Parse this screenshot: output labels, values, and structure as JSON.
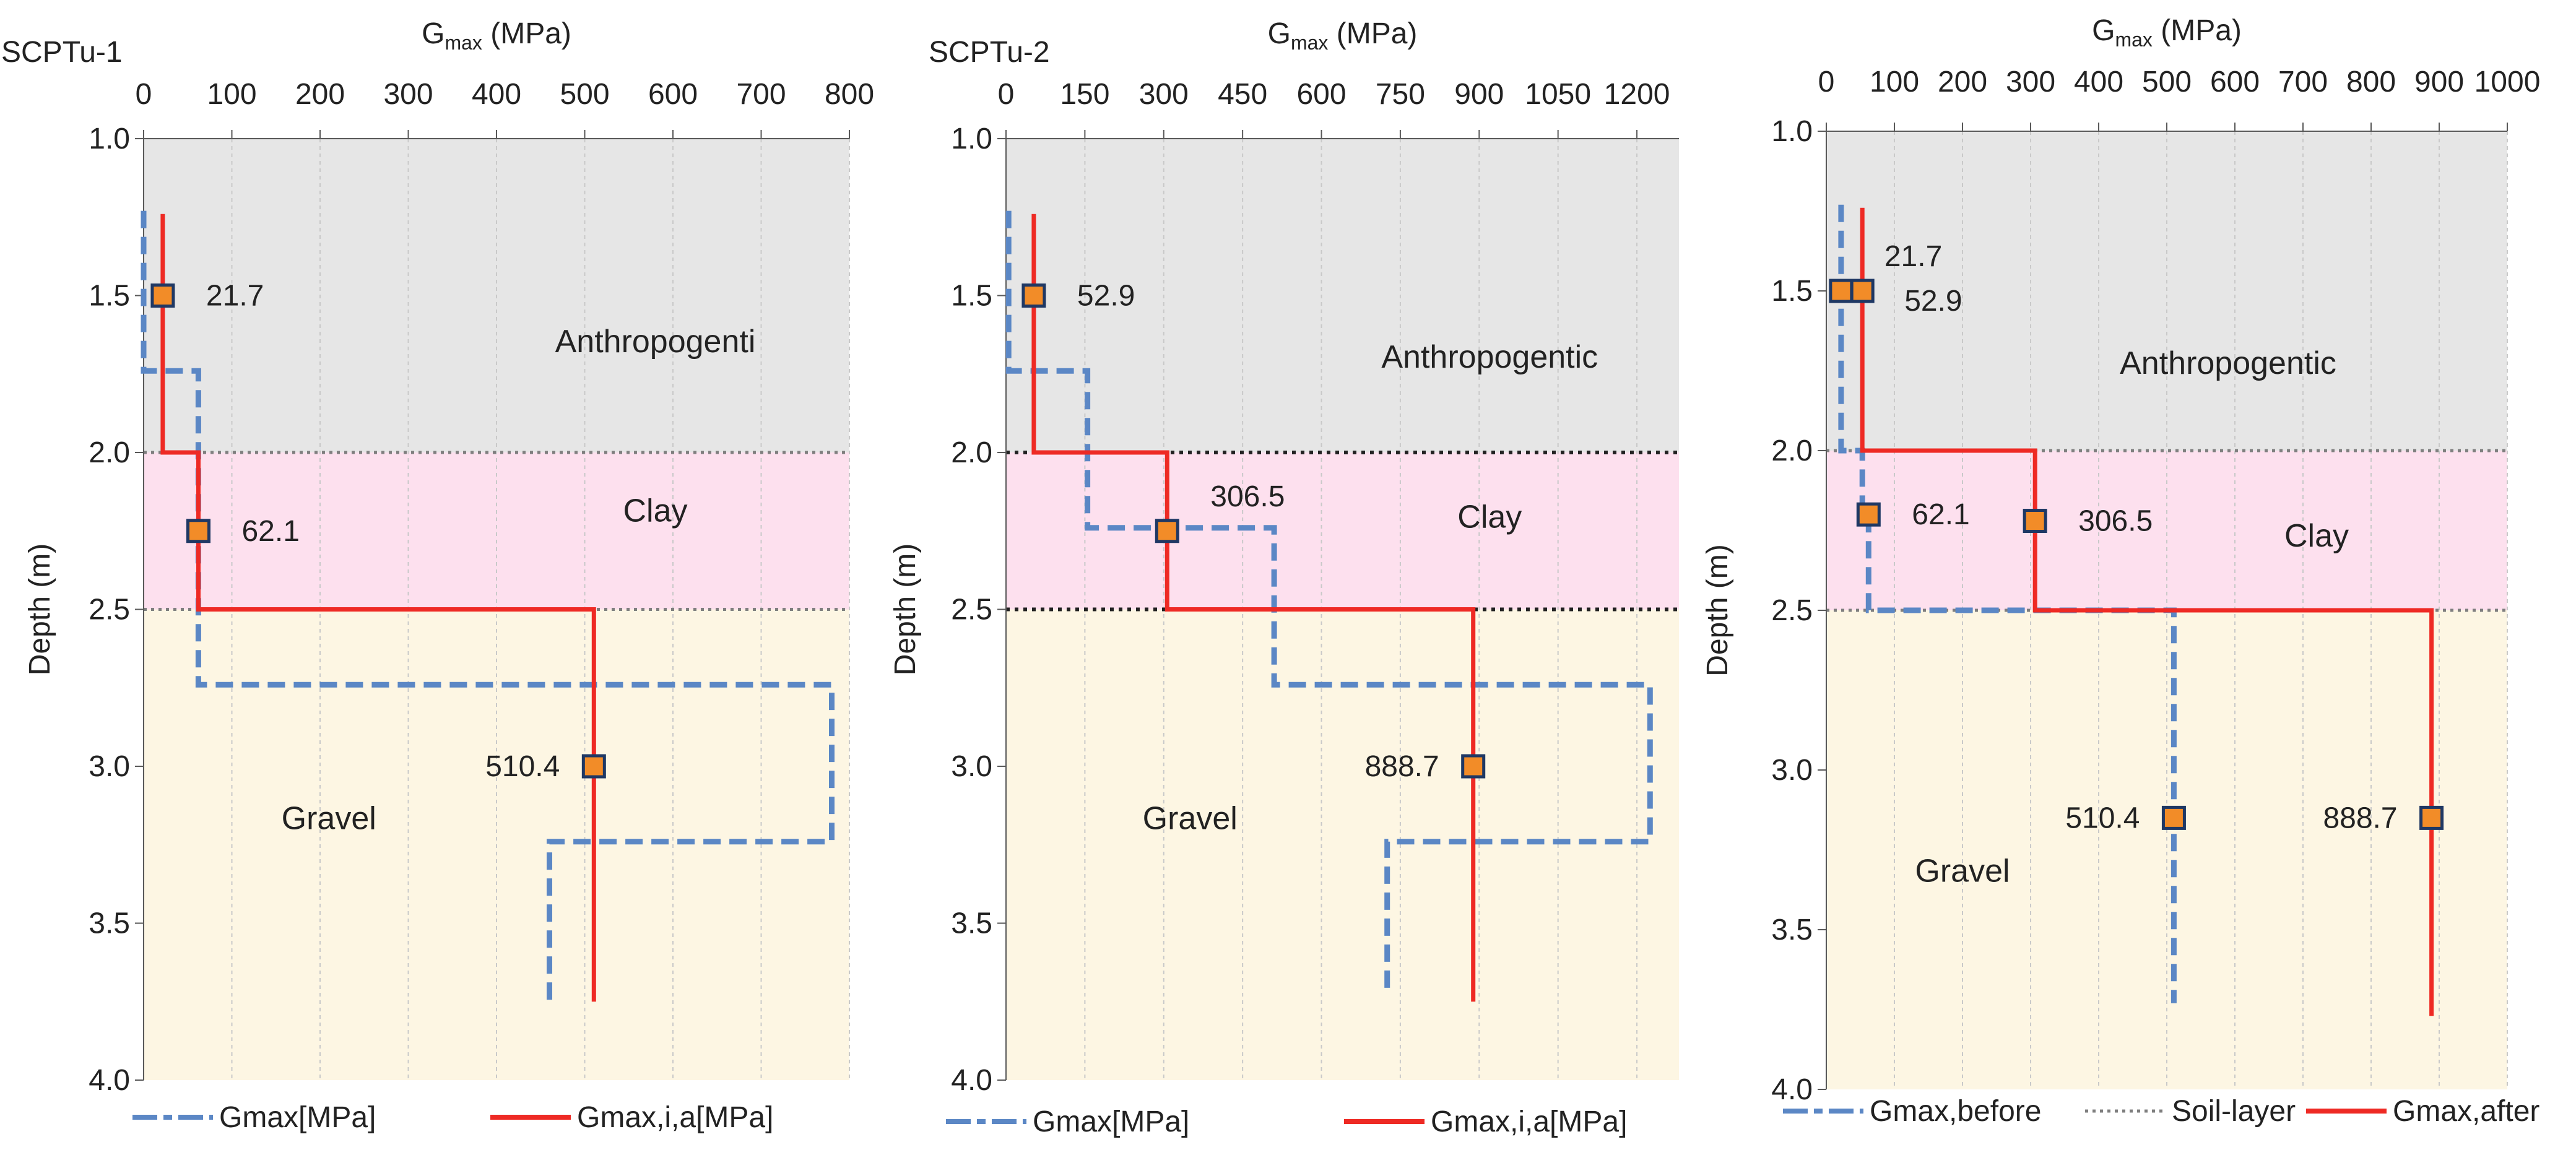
{
  "chart_data": [
    {
      "type": "line",
      "title": "SCPTu-1",
      "xlabel_main": "G",
      "xlabel_sub": "max",
      "xlabel_unit": " (MPa)",
      "ylabel": "Depth (m)",
      "xlim": [
        0,
        800
      ],
      "ylim": [
        1.0,
        4.0
      ],
      "xticks": [
        0,
        100,
        200,
        300,
        400,
        500,
        600,
        700,
        800
      ],
      "xtick_labels": [
        "0",
        "100",
        "200",
        "300",
        "400",
        "500",
        "600",
        "700",
        "800"
      ],
      "yticks": [
        1.0,
        1.5,
        2.0,
        2.5,
        3.0,
        3.5,
        4.0
      ],
      "ytick_labels": [
        "1.0",
        "1.5",
        "2.0",
        "2.5",
        "3.0",
        "3.5",
        "4.0"
      ],
      "layers": [
        {
          "name": "Anthropogenti",
          "top": 1.0,
          "bottom": 2.0,
          "color": "#e6e6e6",
          "label_x": 580,
          "label_y": 1.68
        },
        {
          "name": "Clay",
          "top": 2.0,
          "bottom": 2.5,
          "color": "#fde0ee",
          "label_x": 580,
          "label_y": 2.22
        },
        {
          "name": "Gravel",
          "top": 2.5,
          "bottom": 4.0,
          "color": "#fdf6e3",
          "label_x": 210,
          "label_y": 3.2
        }
      ],
      "layer_boundaries": [
        2.0,
        2.5
      ],
      "series": [
        {
          "name": "Gmax[MPa]",
          "style": "dashed",
          "color": "#5b87c5",
          "x": [
            0,
            0,
            62,
            62,
            62,
            62,
            780,
            780,
            460,
            460
          ],
          "y": [
            1.23,
            1.74,
            1.74,
            2.0,
            2.5,
            2.74,
            2.74,
            3.24,
            3.24,
            3.75
          ]
        },
        {
          "name": "Gmax,i,a[MPa]",
          "style": "solid",
          "color": "#ee2a24",
          "x": [
            21.7,
            21.7,
            62.1,
            62.1,
            510.4,
            510.4
          ],
          "y": [
            1.24,
            2.0,
            2.0,
            2.5,
            2.5,
            3.75
          ]
        }
      ],
      "points": [
        {
          "x": 21.7,
          "y": 1.5,
          "label": "21.7",
          "label_side": "right"
        },
        {
          "x": 62.1,
          "y": 2.25,
          "label": "62.1",
          "label_side": "right"
        },
        {
          "x": 510.4,
          "y": 3.0,
          "label": "510.4",
          "label_side": "left"
        }
      ],
      "legend": [
        {
          "label": "Gmax[MPa]",
          "style": "dashed",
          "color": "#5b87c5"
        },
        {
          "label": "Gmax,i,a[MPa]",
          "style": "solid",
          "color": "#ee2a24"
        }
      ]
    },
    {
      "type": "line",
      "title": "SCPTu-2",
      "xlabel_main": "G",
      "xlabel_sub": "max",
      "xlabel_unit": " (MPa)",
      "ylabel": "Depth (m)",
      "xlim": [
        0,
        1280
      ],
      "ylim": [
        1.0,
        4.0
      ],
      "xticks": [
        0,
        150,
        300,
        450,
        600,
        750,
        900,
        1050,
        1200
      ],
      "xtick_labels": [
        "0",
        "150",
        "300",
        "450",
        "600",
        "750",
        "900",
        "1050",
        "1200"
      ],
      "yticks": [
        1.0,
        1.5,
        2.0,
        2.5,
        3.0,
        3.5,
        4.0
      ],
      "ytick_labels": [
        "1.0",
        "1.5",
        "2.0",
        "2.5",
        "3.0",
        "3.5",
        "4.0"
      ],
      "layers": [
        {
          "name": "Anthropogentic",
          "top": 1.0,
          "bottom": 2.0,
          "color": "#e6e6e6",
          "label_x": 920,
          "label_y": 1.73
        },
        {
          "name": "Clay",
          "top": 2.0,
          "bottom": 2.5,
          "color": "#fde0ee",
          "label_x": 920,
          "label_y": 2.24
        },
        {
          "name": "Gravel",
          "top": 2.5,
          "bottom": 4.0,
          "color": "#fdf6e3",
          "label_x": 350,
          "label_y": 3.2
        }
      ],
      "layer_boundaries": [
        2.0,
        2.5
      ],
      "series": [
        {
          "name": "Gmax[MPa]",
          "style": "dashed",
          "color": "#5b87c5",
          "x": [
            5,
            5,
            155,
            155,
            510,
            510,
            1225,
            1225,
            725,
            725
          ],
          "y": [
            1.23,
            1.74,
            1.74,
            2.24,
            2.24,
            2.74,
            2.74,
            3.24,
            3.24,
            3.73
          ]
        },
        {
          "name": "Gmax,i,a[MPa]",
          "style": "solid",
          "color": "#ee2a24",
          "x": [
            52.9,
            52.9,
            306.5,
            306.5,
            888.7,
            888.7
          ],
          "y": [
            1.24,
            2.0,
            2.0,
            2.5,
            2.5,
            3.75
          ]
        }
      ],
      "points": [
        {
          "x": 52.9,
          "y": 1.5,
          "label": "52.9",
          "label_side": "right"
        },
        {
          "x": 306.5,
          "y": 2.25,
          "label": "306.5",
          "label_side": "above-right"
        },
        {
          "x": 888.7,
          "y": 3.0,
          "label": "888.7",
          "label_side": "left"
        }
      ],
      "legend": [
        {
          "label": "Gmax[MPa]",
          "style": "dashed",
          "color": "#5b87c5"
        },
        {
          "label": "Gmax,i,a[MPa]",
          "style": "solid",
          "color": "#ee2a24"
        }
      ]
    },
    {
      "type": "line",
      "title": "",
      "xlabel_main": "G",
      "xlabel_sub": "max",
      "xlabel_unit": " (MPa)",
      "ylabel": "Depth (m)",
      "xlim": [
        0,
        1000
      ],
      "ylim": [
        1.0,
        4.0
      ],
      "xticks": [
        0,
        100,
        200,
        300,
        400,
        500,
        600,
        700,
        800,
        900,
        1000
      ],
      "xtick_labels": [
        "0",
        "100",
        "200",
        "300",
        "400",
        "500",
        "600",
        "700",
        "800",
        "900",
        "1000"
      ],
      "yticks": [
        1.0,
        1.5,
        2.0,
        2.5,
        3.0,
        3.5,
        4.0
      ],
      "ytick_labels": [
        "1.0",
        "1.5",
        "2.0",
        "2.5",
        "3.0",
        "3.5",
        "4.0"
      ],
      "layers": [
        {
          "name": "Anthropogentic",
          "top": 1.0,
          "bottom": 2.0,
          "color": "#e6e6e6",
          "label_x": 590,
          "label_y": 1.76
        },
        {
          "name": "Clay",
          "top": 2.0,
          "bottom": 2.5,
          "color": "#fde0ee",
          "label_x": 720,
          "label_y": 2.3
        },
        {
          "name": "Gravel",
          "top": 2.5,
          "bottom": 4.0,
          "color": "#fdf6e3",
          "label_x": 200,
          "label_y": 3.35
        }
      ],
      "layer_boundaries": [
        2.0,
        2.5
      ],
      "series": [
        {
          "name": "Gmax,before",
          "style": "dashed",
          "color": "#5b87c5",
          "x": [
            21.7,
            21.7,
            52.9,
            52.9,
            62.1,
            62.1,
            306.5,
            306.5,
            510.4,
            510.4
          ],
          "y": [
            1.23,
            2.0,
            2.0,
            2.2,
            2.2,
            2.5,
            2.5,
            2.5,
            2.5,
            3.73
          ]
        },
        {
          "name": "Gmax,after",
          "style": "solid",
          "color": "#ee2a24",
          "x": [
            52.9,
            52.9,
            306.5,
            306.5,
            888.7,
            888.7
          ],
          "y": [
            1.24,
            2.0,
            2.0,
            2.5,
            2.5,
            3.77
          ]
        }
      ],
      "points": [
        {
          "x": 21.7,
          "y": 1.5,
          "label": "21.7",
          "label_side": "above-right"
        },
        {
          "x": 52.9,
          "y": 1.5,
          "label": "52.9",
          "label_side": "below-right"
        },
        {
          "x": 62.1,
          "y": 2.2,
          "label": "62.1",
          "label_side": "right"
        },
        {
          "x": 306.5,
          "y": 2.22,
          "label": "306.5",
          "label_side": "right"
        },
        {
          "x": 510.4,
          "y": 3.15,
          "label": "510.4",
          "label_side": "left"
        },
        {
          "x": 888.7,
          "y": 3.15,
          "label": "888.7",
          "label_side": "left"
        }
      ],
      "legend": [
        {
          "label": "Gmax,before",
          "style": "dashed",
          "color": "#5b87c5"
        },
        {
          "label": "Soil-layer",
          "style": "dotted",
          "color": "#7f7f7f"
        },
        {
          "label": "Gmax,after",
          "style": "solid",
          "color": "#ee2a24"
        }
      ]
    }
  ]
}
